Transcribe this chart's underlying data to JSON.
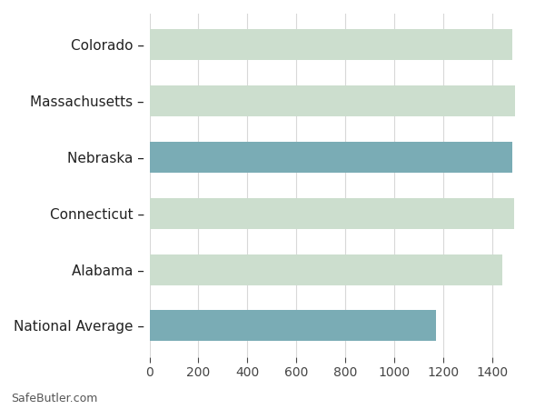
{
  "categories": [
    "National Average",
    "Alabama",
    "Connecticut",
    "Nebraska",
    "Massachusetts",
    "Colorado"
  ],
  "values": [
    1172,
    1443,
    1490,
    1482,
    1493,
    1482
  ],
  "bar_colors": [
    "#7aacb5",
    "#ccdece",
    "#ccdece",
    "#7aacb5",
    "#ccdece",
    "#ccdece"
  ],
  "xlim": [
    0,
    1560
  ],
  "xticks": [
    0,
    200,
    400,
    600,
    800,
    1000,
    1200,
    1400
  ],
  "background_color": "#ffffff",
  "grid_color": "#d8d8d8",
  "label_fontsize": 11,
  "tick_fontsize": 10,
  "bar_height": 0.55,
  "watermark": "SafeButler.com",
  "watermark_fontsize": 9
}
